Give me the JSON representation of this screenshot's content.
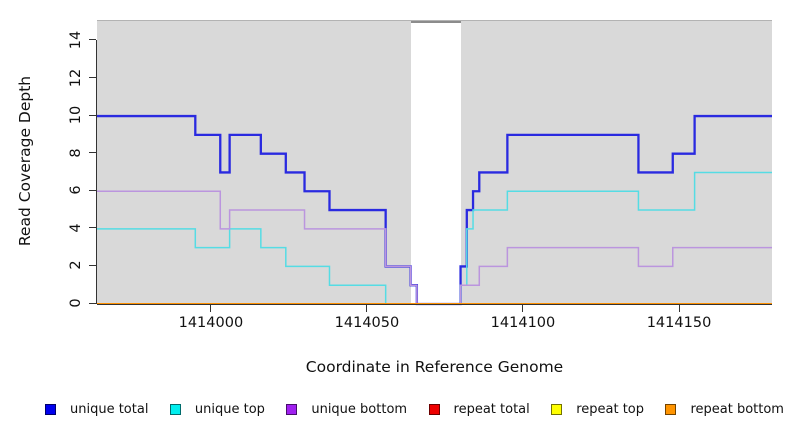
{
  "figure": {
    "background": "#ffffff"
  },
  "y_axis": {
    "title": "Read Coverage Depth",
    "ticks": [
      0,
      2,
      4,
      6,
      8,
      10,
      12,
      14
    ]
  },
  "x_axis": {
    "title": "Coordinate in Reference Genome",
    "ticks": [
      1414000,
      1414050,
      1414100,
      1414150
    ]
  },
  "legend": {
    "items": [
      {
        "label": "unique total",
        "color": "#0000ee"
      },
      {
        "label": "unique top",
        "color": "#00eeee"
      },
      {
        "label": "unique bottom",
        "color": "#a020f0"
      },
      {
        "label": "repeat total",
        "color": "#ee0000"
      },
      {
        "label": "repeat top",
        "color": "#ffff00"
      },
      {
        "label": "repeat bottom",
        "color": "#ff9400"
      }
    ]
  },
  "chart_data": {
    "type": "line",
    "subtype": "step-coverage",
    "title": "",
    "xlabel": "Coordinate in Reference Genome",
    "ylabel": "Read Coverage Depth",
    "xlim": [
      1413963.5,
      1414179.8
    ],
    "ylim": [
      0,
      15.06
    ],
    "x_ticks": [
      1414000,
      1414050,
      1414100,
      1414150
    ],
    "y_ticks": [
      0,
      2,
      4,
      6,
      8,
      10,
      12,
      14
    ],
    "grid": false,
    "legend_position": "bottom",
    "plot_background": "#d9d9d9",
    "gap_region": {
      "x_start": 1414064,
      "x_end": 1414080,
      "color": "#ffffff"
    },
    "series": [
      {
        "name": "unique total",
        "color": "#2a2ae0",
        "line_width": 2.3,
        "steps": [
          [
            1413963,
            10
          ],
          [
            1413995,
            9
          ],
          [
            1414003,
            7
          ],
          [
            1414006,
            9
          ],
          [
            1414016,
            8
          ],
          [
            1414024,
            7
          ],
          [
            1414030,
            6
          ],
          [
            1414038,
            5
          ],
          [
            1414056,
            2
          ],
          [
            1414064,
            1
          ],
          [
            1414066,
            0
          ],
          [
            1414080,
            2
          ],
          [
            1414082,
            5
          ],
          [
            1414084,
            6
          ],
          [
            1414086,
            7
          ],
          [
            1414095,
            9
          ],
          [
            1414137,
            7
          ],
          [
            1414148,
            8
          ],
          [
            1414155,
            10
          ]
        ]
      },
      {
        "name": "unique top",
        "color": "#55dce4",
        "line_width": 1.5,
        "steps": [
          [
            1413963,
            4
          ],
          [
            1413995,
            3
          ],
          [
            1414006,
            4
          ],
          [
            1414016,
            3
          ],
          [
            1414024,
            2
          ],
          [
            1414038,
            1
          ],
          [
            1414056,
            0
          ],
          [
            1414080,
            1
          ],
          [
            1414082,
            4
          ],
          [
            1414084,
            5
          ],
          [
            1414095,
            6
          ],
          [
            1414137,
            5
          ],
          [
            1414155,
            7
          ]
        ]
      },
      {
        "name": "unique bottom",
        "color": "#bb95de",
        "line_width": 1.5,
        "steps": [
          [
            1413963,
            6
          ],
          [
            1414003,
            4
          ],
          [
            1414006,
            5
          ],
          [
            1414030,
            4
          ],
          [
            1414056,
            2
          ],
          [
            1414064,
            1
          ],
          [
            1414066,
            0
          ],
          [
            1414080,
            1
          ],
          [
            1414086,
            2
          ],
          [
            1414095,
            3
          ],
          [
            1414137,
            2
          ],
          [
            1414148,
            3
          ]
        ]
      },
      {
        "name": "repeat total",
        "color": "#dd0000",
        "line_width": 1.2,
        "steps": [
          [
            1413963,
            0
          ]
        ]
      },
      {
        "name": "repeat top",
        "color": "#ffff00",
        "line_width": 1.2,
        "steps": [
          [
            1413963,
            0
          ]
        ]
      },
      {
        "name": "repeat bottom",
        "color": "#ff9100",
        "line_width": 2,
        "steps": [
          [
            1413963,
            0
          ]
        ]
      }
    ]
  }
}
